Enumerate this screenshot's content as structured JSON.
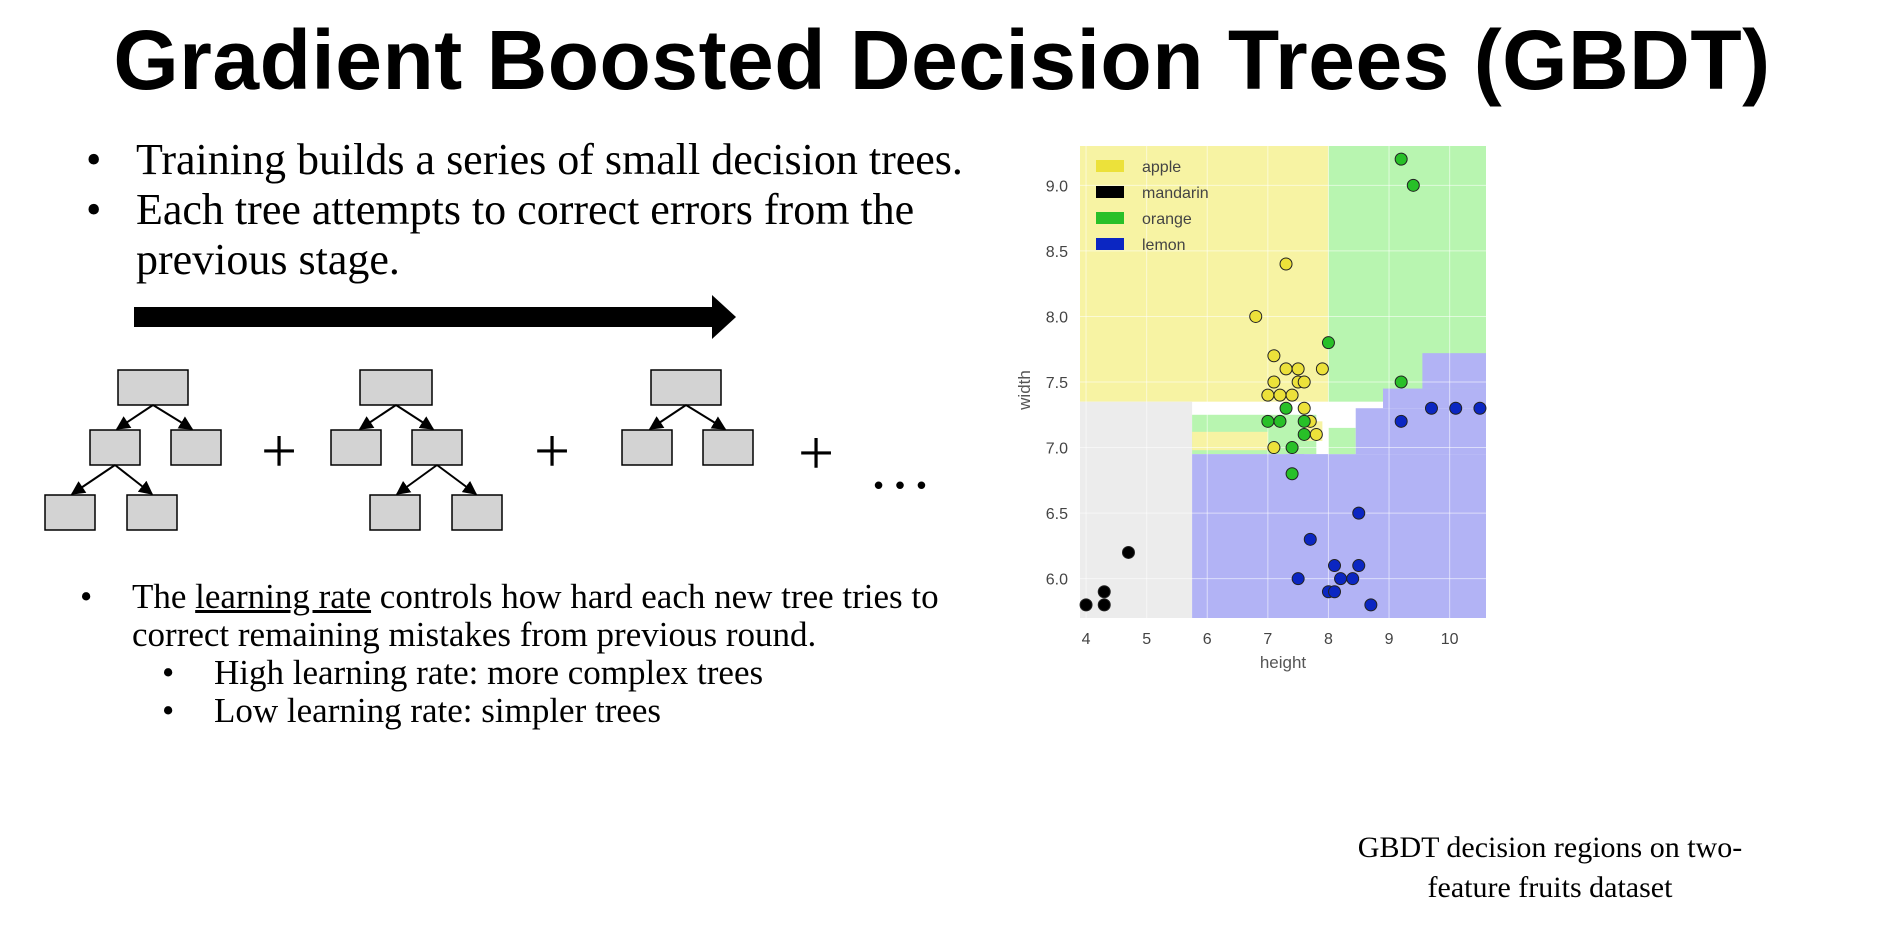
{
  "title": "Gradient Boosted Decision Trees (GBDT)",
  "bullets_top": [
    "Training builds a series of small decision trees.",
    "Each tree attempts to correct errors from the",
    "previous stage."
  ],
  "bullet_glyph": "•",
  "tree_operators": [
    "+",
    "+",
    "+"
  ],
  "ellipsis": "…",
  "bottom": {
    "line1_prefix": "The ",
    "line1_term": "learning rate",
    "line1_suffix": " controls how hard each new tree tries to",
    "line2": "correct remaining mistakes from previous round.",
    "sub1": "High learning rate: more complex trees",
    "sub2": "Low learning rate: simpler trees"
  },
  "caption_line1": "GBDT decision regions on two-",
  "caption_line2": "feature fruits dataset",
  "colors": {
    "apple": "#f7f3a3",
    "mandarin": "#ececec",
    "orange": "#b8f5b0",
    "lemon": "#b2b3f5",
    "apple_pt": "#ece13a",
    "mandarin_pt": "#000000",
    "orange_pt": "#28c028",
    "lemon_pt": "#0b26c2",
    "tree_box": "#d3d3d3"
  },
  "chart_data": {
    "type": "scatter",
    "xlabel": "height",
    "ylabel": "width",
    "xlim": [
      3.9,
      10.6
    ],
    "ylim": [
      5.7,
      9.3
    ],
    "xticks": [
      "4",
      "5",
      "6",
      "7",
      "8",
      "9",
      "10"
    ],
    "yticks": [
      "6.0",
      "6.5",
      "7.0",
      "7.5",
      "8.0",
      "8.5",
      "9.0"
    ],
    "legend_position": "top-left",
    "legend": [
      {
        "name": "apple",
        "color": "#ece13a"
      },
      {
        "name": "mandarin",
        "color": "#000000"
      },
      {
        "name": "orange",
        "color": "#28c028"
      },
      {
        "name": "lemon",
        "color": "#0b26c2"
      }
    ],
    "series": [
      {
        "name": "apple",
        "points": [
          [
            6.8,
            8.0
          ],
          [
            7.3,
            8.4
          ],
          [
            7.1,
            7.7
          ],
          [
            7.3,
            7.6
          ],
          [
            7.5,
            7.6
          ],
          [
            7.9,
            7.6
          ],
          [
            7.1,
            7.5
          ],
          [
            7.5,
            7.5
          ],
          [
            7.6,
            7.5
          ],
          [
            7.0,
            7.4
          ],
          [
            7.2,
            7.4
          ],
          [
            7.4,
            7.4
          ],
          [
            7.6,
            7.3
          ],
          [
            7.7,
            7.2
          ],
          [
            7.8,
            7.1
          ],
          [
            7.1,
            7.0
          ]
        ]
      },
      {
        "name": "mandarin",
        "points": [
          [
            4.0,
            5.8
          ],
          [
            4.3,
            5.8
          ],
          [
            4.3,
            5.9
          ],
          [
            4.7,
            6.2
          ]
        ]
      },
      {
        "name": "orange",
        "points": [
          [
            9.2,
            9.2
          ],
          [
            9.4,
            9.0
          ],
          [
            8.0,
            7.8
          ],
          [
            9.2,
            7.5
          ],
          [
            7.3,
            7.3
          ],
          [
            7.0,
            7.2
          ],
          [
            7.2,
            7.2
          ],
          [
            7.6,
            7.2
          ],
          [
            7.4,
            7.0
          ],
          [
            7.6,
            7.1
          ],
          [
            7.4,
            6.8
          ]
        ]
      },
      {
        "name": "lemon",
        "points": [
          [
            9.7,
            7.3
          ],
          [
            10.1,
            7.3
          ],
          [
            10.5,
            7.3
          ],
          [
            9.2,
            7.2
          ],
          [
            8.5,
            6.5
          ],
          [
            7.7,
            6.3
          ],
          [
            7.5,
            6.0
          ],
          [
            8.1,
            6.1
          ],
          [
            8.5,
            6.1
          ],
          [
            8.2,
            6.0
          ],
          [
            8.4,
            6.0
          ],
          [
            8.0,
            5.9
          ],
          [
            8.1,
            5.9
          ],
          [
            8.7,
            5.8
          ]
        ]
      }
    ]
  }
}
